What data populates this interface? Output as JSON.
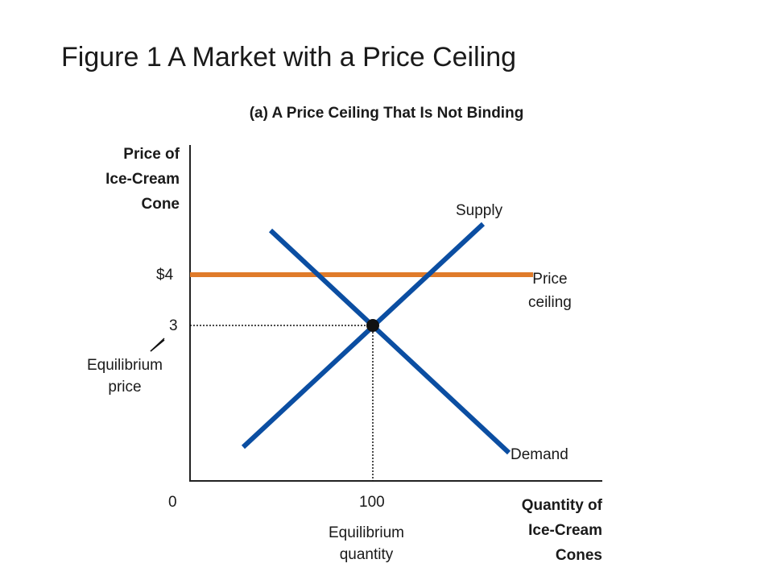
{
  "title": "Figure 1 A Market with a Price Ceiling",
  "chart_data": {
    "type": "line",
    "subtitle": "(a) A Price Ceiling That Is Not Binding",
    "ylabel": [
      "Price of",
      "Ice-Cream",
      "Cone"
    ],
    "xlabel": [
      "Quantity of",
      "Ice-Cream",
      "Cones"
    ],
    "origin_label": "0",
    "series": [
      {
        "name": "Supply",
        "color": "#0b4ea2"
      },
      {
        "name": "Demand",
        "color": "#0b4ea2"
      },
      {
        "name": "Price ceiling",
        "color": "#e07b2a",
        "value": 4,
        "value_label": "$4",
        "label_lines": [
          "Price",
          "ceiling"
        ]
      }
    ],
    "equilibrium": {
      "quantity": 100,
      "price": 3,
      "quantity_tick": "100",
      "price_tick": "3",
      "quantity_label": [
        "Equilibrium",
        "quantity"
      ],
      "price_label": [
        "Equilibrium",
        "price"
      ]
    },
    "grid": false,
    "legend": "none"
  }
}
